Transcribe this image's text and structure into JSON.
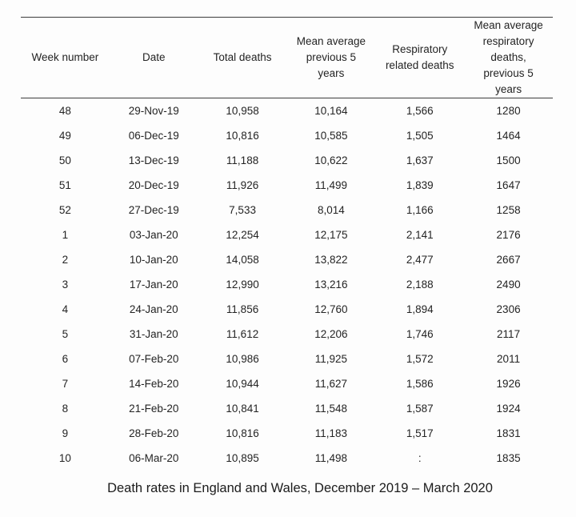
{
  "chart_data": {
    "type": "table",
    "title": "Death rates in England and Wales, December 2019 – March 2020",
    "columns": [
      "Week number",
      "Date",
      "Total deaths",
      "Mean average previous 5 years",
      "Respiratory related deaths",
      "Mean average respiratory deaths, previous 5 years"
    ],
    "rows": [
      [
        "48",
        "29-Nov-19",
        "10,958",
        "10,164",
        "1,566",
        "1280"
      ],
      [
        "49",
        "06-Dec-19",
        "10,816",
        "10,585",
        "1,505",
        "1464"
      ],
      [
        "50",
        "13-Dec-19",
        "11,188",
        "10,622",
        "1,637",
        "1500"
      ],
      [
        "51",
        "20-Dec-19",
        "11,926",
        "11,499",
        "1,839",
        "1647"
      ],
      [
        "52",
        "27-Dec-19",
        "7,533",
        "8,014",
        "1,166",
        "1258"
      ],
      [
        "1",
        "03-Jan-20",
        "12,254",
        "12,175",
        "2,141",
        "2176"
      ],
      [
        "2",
        "10-Jan-20",
        "14,058",
        "13,822",
        "2,477",
        "2667"
      ],
      [
        "3",
        "17-Jan-20",
        "12,990",
        "13,216",
        "2,188",
        "2490"
      ],
      [
        "4",
        "24-Jan-20",
        "11,856",
        "12,760",
        "1,894",
        "2306"
      ],
      [
        "5",
        "31-Jan-20",
        "11,612",
        "12,206",
        "1,746",
        "2117"
      ],
      [
        "6",
        "07-Feb-20",
        "10,986",
        "11,925",
        "1,572",
        "2011"
      ],
      [
        "7",
        "14-Feb-20",
        "10,944",
        "11,627",
        "1,586",
        "1926"
      ],
      [
        "8",
        "21-Feb-20",
        "10,841",
        "11,548",
        "1,587",
        "1924"
      ],
      [
        "9",
        "28-Feb-20",
        "10,816",
        "11,183",
        "1,517",
        "1831"
      ],
      [
        "10",
        "06-Mar-20",
        "10,895",
        "11,498",
        ":",
        "1835"
      ]
    ],
    "layout": {
      "grid": "horizontal rules above and below header only",
      "legend_position": "none"
    }
  },
  "caption": "Death rates in England and Wales, December 2019 – March 2020",
  "colors": {
    "background": "#fdfdfd",
    "text": "#242424",
    "rule": "#3c3c3c"
  }
}
